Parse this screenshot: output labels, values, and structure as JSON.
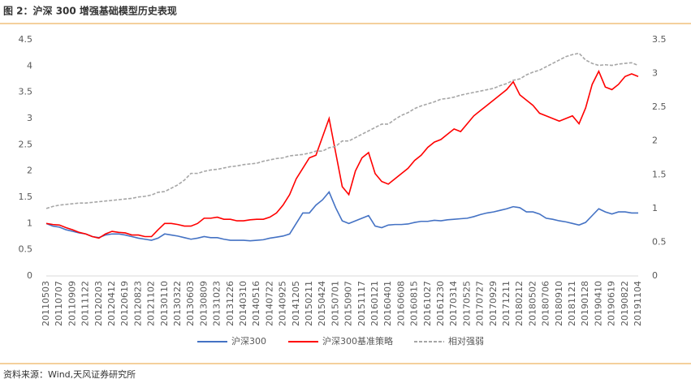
{
  "chart_data": {
    "type": "line",
    "title": "图 2：沪深 300 增强基础模型历史表现",
    "source": "资料来源：Wind,天风证券研究所",
    "categories": [
      "20110503",
      null,
      "20110707",
      null,
      "20110909",
      null,
      "20111122",
      null,
      "20120203",
      null,
      "20120412",
      null,
      "20120619",
      null,
      "20120823",
      null,
      "20121102",
      null,
      "20130110",
      null,
      "20130322",
      null,
      "20130603",
      null,
      "20130809",
      null,
      "20131023",
      null,
      "20131226",
      null,
      "20140310",
      null,
      "20140516",
      null,
      "20140722",
      null,
      "20140925",
      null,
      "20141205",
      null,
      "20150211",
      null,
      "20150424",
      null,
      "20150701",
      null,
      "20150907",
      null,
      "20151117",
      null,
      "20160121",
      null,
      "20160401",
      null,
      "20160608",
      null,
      "20160815",
      null,
      "20161027",
      null,
      "20161230",
      null,
      "20170314",
      null,
      "20170525",
      null,
      "20170727",
      null,
      "20170929",
      null,
      "20171211",
      null,
      "20180212",
      null,
      "20180502",
      null,
      "20180706",
      null,
      "20180910",
      null,
      "20181121",
      null,
      "20190128",
      null,
      "20190410",
      null,
      "20190619",
      null,
      "20190822",
      null,
      "20191104"
    ],
    "series": [
      {
        "name": "沪深300",
        "color": "#4472c4",
        "values": [
          1.0,
          0.95,
          0.93,
          0.88,
          0.85,
          0.82,
          0.8,
          0.75,
          0.73,
          0.78,
          0.8,
          0.8,
          0.78,
          0.75,
          0.72,
          0.7,
          0.68,
          0.72,
          0.8,
          0.78,
          0.76,
          0.73,
          0.7,
          0.72,
          0.75,
          0.73,
          0.73,
          0.7,
          0.68,
          0.68,
          0.68,
          0.67,
          0.68,
          0.69,
          0.72,
          0.74,
          0.76,
          0.8,
          1.0,
          1.2,
          1.2,
          1.35,
          1.45,
          1.6,
          1.3,
          1.05,
          1.0,
          1.05,
          1.1,
          1.15,
          0.95,
          0.92,
          0.97,
          0.98,
          0.98,
          0.99,
          1.02,
          1.04,
          1.04,
          1.06,
          1.05,
          1.07,
          1.08,
          1.09,
          1.1,
          1.13,
          1.17,
          1.2,
          1.22,
          1.25,
          1.28,
          1.32,
          1.3,
          1.22,
          1.22,
          1.18,
          1.1,
          1.08,
          1.05,
          1.03,
          1.0,
          0.97,
          1.02,
          1.15,
          1.28,
          1.22,
          1.18,
          1.22,
          1.22,
          1.2,
          1.2
        ]
      },
      {
        "name": "沪深300基准策略",
        "color": "#ff0000",
        "values": [
          1.0,
          0.98,
          0.97,
          0.92,
          0.88,
          0.83,
          0.8,
          0.75,
          0.72,
          0.8,
          0.85,
          0.83,
          0.82,
          0.78,
          0.78,
          0.75,
          0.75,
          0.88,
          1.0,
          1.0,
          0.98,
          0.95,
          0.95,
          1.0,
          1.1,
          1.1,
          1.12,
          1.08,
          1.08,
          1.05,
          1.05,
          1.07,
          1.08,
          1.08,
          1.12,
          1.2,
          1.35,
          1.55,
          1.85,
          2.05,
          2.25,
          2.3,
          2.65,
          3.0,
          2.35,
          1.7,
          1.55,
          2.0,
          2.25,
          2.35,
          1.95,
          1.8,
          1.75,
          1.85,
          1.95,
          2.05,
          2.2,
          2.3,
          2.45,
          2.55,
          2.6,
          2.7,
          2.8,
          2.75,
          2.9,
          3.05,
          3.15,
          3.25,
          3.35,
          3.45,
          3.55,
          3.7,
          3.45,
          3.35,
          3.25,
          3.1,
          3.05,
          3.0,
          2.95,
          3.0,
          3.05,
          2.9,
          3.2,
          3.65,
          3.9,
          3.6,
          3.55,
          3.65,
          3.8,
          3.85,
          3.8
        ]
      },
      {
        "name": "相对强弱",
        "color": "#a6a6a6",
        "axis": "y2",
        "dashed": true,
        "values": [
          1.0,
          1.03,
          1.05,
          1.06,
          1.07,
          1.08,
          1.08,
          1.09,
          1.1,
          1.11,
          1.12,
          1.13,
          1.14,
          1.15,
          1.17,
          1.18,
          1.2,
          1.24,
          1.25,
          1.3,
          1.35,
          1.42,
          1.52,
          1.52,
          1.55,
          1.57,
          1.58,
          1.6,
          1.62,
          1.63,
          1.65,
          1.66,
          1.67,
          1.7,
          1.72,
          1.74,
          1.75,
          1.78,
          1.79,
          1.8,
          1.82,
          1.85,
          1.85,
          1.9,
          1.92,
          2.0,
          2.0,
          2.05,
          2.1,
          2.15,
          2.2,
          2.25,
          2.25,
          2.32,
          2.38,
          2.42,
          2.48,
          2.52,
          2.55,
          2.58,
          2.62,
          2.63,
          2.65,
          2.68,
          2.7,
          2.72,
          2.74,
          2.76,
          2.78,
          2.82,
          2.85,
          2.9,
          2.92,
          2.98,
          3.02,
          3.05,
          3.1,
          3.15,
          3.2,
          3.25,
          3.28,
          3.3,
          3.2,
          3.15,
          3.12,
          3.13,
          3.12,
          3.14,
          3.15,
          3.16,
          3.12
        ]
      }
    ],
    "ylim": [
      0,
      4.5
    ],
    "yticks": [
      0,
      0.5,
      1,
      1.5,
      2,
      2.5,
      3,
      3.5,
      4,
      4.5
    ],
    "y2lim": [
      0,
      3.5
    ],
    "y2ticks": [
      0,
      0.5,
      1,
      1.5,
      2,
      2.5,
      3,
      3.5
    ],
    "legend": "bottom"
  }
}
